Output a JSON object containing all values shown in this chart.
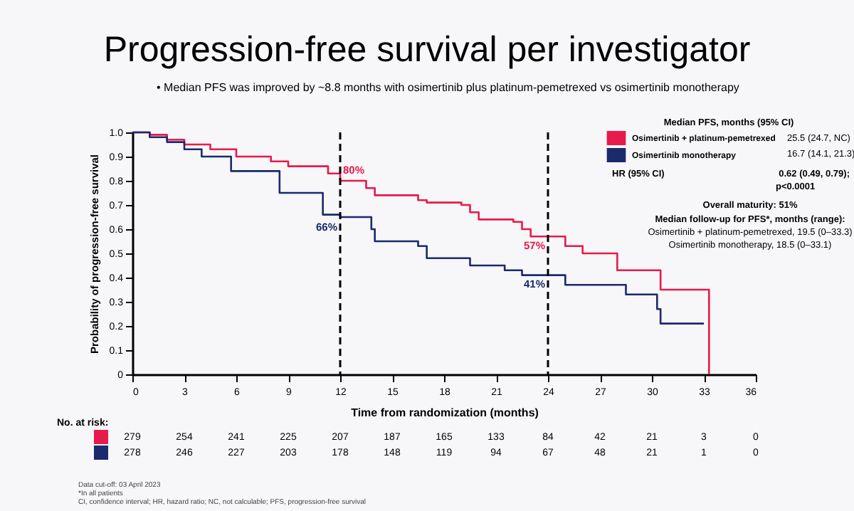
{
  "chart_data": {
    "type": "step",
    "title": "Progression-free survival per investigator",
    "subtitle": "•  Median PFS was improved by ~8.8 months with osimertinib plus platinum-pemetrexed vs osimertinib monotherapy",
    "xlabel": "Time from randomization (months)",
    "ylabel": "Probability of progression-free survival",
    "xlim": [
      0,
      36
    ],
    "xticks": [
      0,
      3,
      6,
      9,
      12,
      15,
      18,
      21,
      24,
      27,
      30,
      33,
      36
    ],
    "ylim": [
      0,
      1
    ],
    "yticks": [
      {
        "value": 0,
        "label": "0"
      },
      0.1,
      0.2,
      0.3,
      0.4,
      0.5,
      0.6,
      0.7,
      0.8,
      0.9,
      {
        "value": 1,
        "label": "1.0"
      }
    ],
    "grid": false,
    "legend": "top right",
    "marker": "none",
    "line_style": "solid",
    "series": [
      {
        "name": "Osimertinib + platinum-pemetrexed",
        "color": "#e8194b",
        "x": [
          0,
          1,
          2,
          3,
          4.5,
          6,
          8,
          9,
          11.3,
          12,
          13.5,
          14,
          16.5,
          17,
          19,
          19.5,
          20,
          22,
          22.5,
          23,
          25,
          26,
          28,
          30.5,
          33.3
        ],
        "values": [
          1.0,
          0.99,
          0.97,
          0.95,
          0.93,
          0.9,
          0.88,
          0.86,
          0.83,
          0.8,
          0.77,
          0.74,
          0.72,
          0.71,
          0.7,
          0.67,
          0.64,
          0.63,
          0.6,
          0.57,
          0.53,
          0.5,
          0.43,
          0.35,
          0
        ]
      },
      {
        "name": "Osimertinib monotherapy",
        "color": "#1a2a6c",
        "x": [
          0,
          1,
          2,
          3,
          4,
          5.7,
          8.5,
          11,
          12,
          13.8,
          14,
          16.5,
          17,
          19.5,
          21.5,
          22.5,
          25,
          28.5,
          30.3,
          30.5,
          33
        ],
        "values": [
          1.0,
          0.98,
          0.96,
          0.93,
          0.9,
          0.84,
          0.75,
          0.66,
          0.65,
          0.6,
          0.55,
          0.53,
          0.48,
          0.45,
          0.43,
          0.41,
          0.37,
          0.33,
          0.27,
          0.21,
          0.21
        ]
      }
    ],
    "ref_lines": [
      {
        "axis": "x",
        "value": 12,
        "line_style": "dashed",
        "color": "#000000"
      },
      {
        "axis": "x",
        "value": 24,
        "line_style": "dashed",
        "color": "#000000"
      }
    ],
    "annotations": [
      "80%",
      "66%",
      "57%",
      "41%",
      "Median PFS, months (95% CI)",
      "25.5 (24.7, NC)",
      "16.7 (14.1, 21.3)",
      "HR (95% CI)",
      "0.62 (0.49, 0.79);",
      "p<0.0001",
      "Overall maturity: 51%",
      "Median follow-up for PFS*, months (range):",
      "Osimertinib + platinum-pemetrexed, 19.5 (0–33.3)",
      "Osimertinib monotherapy, 18.5 (0–33.1)",
      "No. at risk:",
      "279 254 241 225 207 187 165 133 84 42 21 3 0",
      "278 246 227 203 178 148 119 94 67 48 21 1 0",
      "Data cut-off: 03 April 2023",
      "*In all patients",
      "CI, confidence interval; HR, hazard ratio; NC, not calculable; PFS, progression-free survival"
    ]
  }
}
